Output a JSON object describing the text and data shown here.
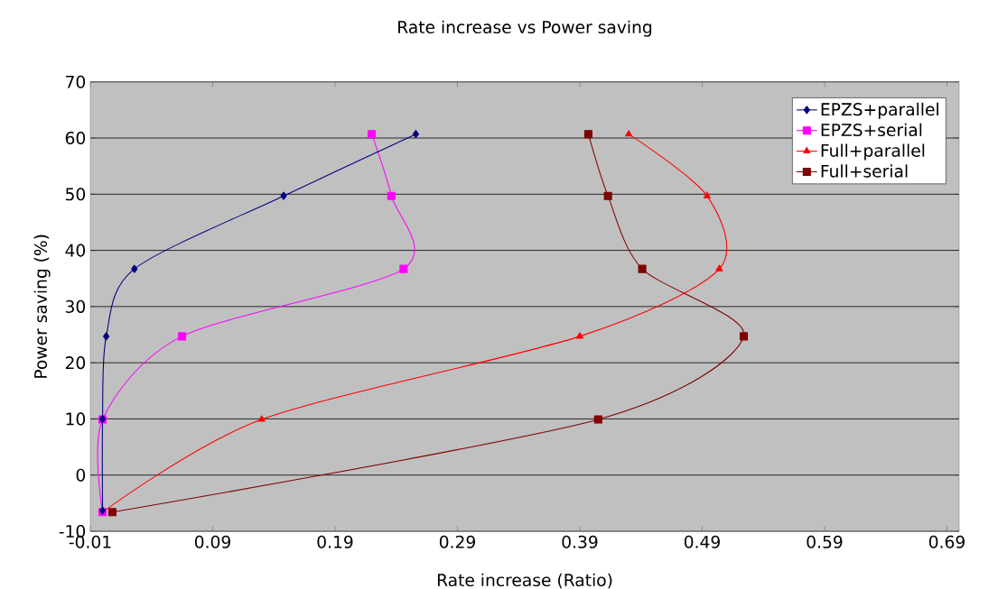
{
  "chart_data": {
    "type": "line",
    "title": "Rate increase vs Power saving",
    "xlabel": "Rate increase (Ratio)",
    "ylabel": "Power saving (%)",
    "xlim": [
      -0.01,
      0.7
    ],
    "xticks": [
      -0.01,
      0.09,
      0.19,
      0.29,
      0.39,
      0.49,
      0.59,
      0.69
    ],
    "ylim": [
      -10,
      70
    ],
    "yticks": [
      -10,
      0,
      10,
      20,
      30,
      40,
      50,
      60,
      70
    ],
    "grid": "y",
    "legend": "top right",
    "series": [
      {
        "name": "EPZS+parallel",
        "color": "#000080",
        "marker": "diamond",
        "x": [
          0.0,
          0.0,
          0.003,
          0.026,
          0.148,
          0.256
        ],
        "values": [
          -6.3,
          10,
          24.7,
          36.7,
          49.7,
          60.7
        ]
      },
      {
        "name": "EPZS+serial",
        "color": "#ff00ff",
        "marker": "square",
        "x": [
          0.0,
          0.0,
          0.065,
          0.246,
          0.236,
          0.22
        ],
        "values": [
          -6.6,
          9.9,
          24.7,
          36.7,
          49.7,
          60.7
        ]
      },
      {
        "name": "Full+parallel",
        "color": "#ff0000",
        "marker": "triangle",
        "x": [
          0.0,
          0.13,
          0.39,
          0.504,
          0.494,
          0.43
        ],
        "values": [
          -6.6,
          9.9,
          24.7,
          36.7,
          49.7,
          60.7
        ]
      },
      {
        "name": "Full+serial",
        "color": "#800000",
        "marker": "square",
        "x": [
          0.008,
          0.405,
          0.524,
          0.441,
          0.413,
          0.397
        ],
        "values": [
          -6.6,
          9.9,
          24.7,
          36.7,
          49.7,
          60.7
        ]
      }
    ]
  }
}
